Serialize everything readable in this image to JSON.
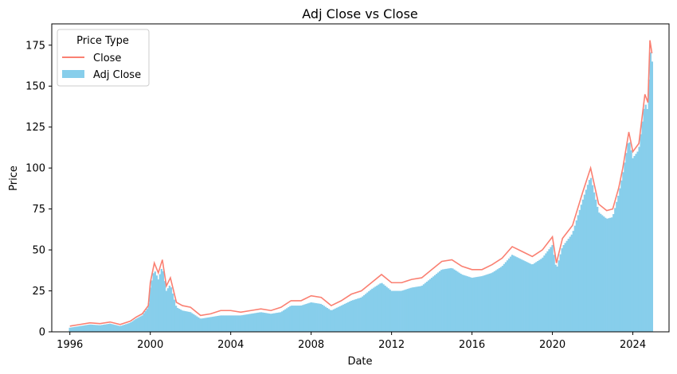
{
  "chart_data": {
    "type": "bar",
    "title": "Adj Close vs Close",
    "xlabel": "Date",
    "ylabel": "Price",
    "xlim": [
      1995.1,
      2025.8
    ],
    "ylim": [
      0,
      188
    ],
    "x_ticks": [
      1996,
      2000,
      2004,
      2008,
      2012,
      2016,
      2020,
      2024
    ],
    "y_ticks": [
      0,
      25,
      50,
      75,
      100,
      125,
      150,
      175
    ],
    "legend": {
      "title": "Price Type",
      "placement": "top-left",
      "entries": [
        {
          "label": "Close",
          "kind": "line",
          "color": "#fa8072"
        },
        {
          "label": "Adj Close",
          "kind": "bar",
          "color": "#87ceeb"
        }
      ]
    },
    "series": [
      {
        "name": "Close",
        "kind": "line",
        "color": "#fa8072",
        "x": [
          1996.0,
          1996.5,
          1997.0,
          1997.5,
          1998.0,
          1998.5,
          1999.0,
          1999.3,
          1999.6,
          1999.9,
          2000.0,
          2000.2,
          2000.4,
          2000.6,
          2000.8,
          2001.0,
          2001.3,
          2001.6,
          2002.0,
          2002.5,
          2003.0,
          2003.5,
          2004.0,
          2004.5,
          2005.0,
          2005.5,
          2006.0,
          2006.5,
          2007.0,
          2007.5,
          2008.0,
          2008.5,
          2009.0,
          2009.5,
          2010.0,
          2010.5,
          2011.0,
          2011.5,
          2012.0,
          2012.5,
          2013.0,
          2013.5,
          2014.0,
          2014.5,
          2015.0,
          2015.5,
          2016.0,
          2016.5,
          2017.0,
          2017.5,
          2018.0,
          2018.5,
          2019.0,
          2019.5,
          2020.0,
          2020.2,
          2020.5,
          2021.0,
          2021.5,
          2021.9,
          2022.3,
          2022.7,
          2023.0,
          2023.3,
          2023.5,
          2023.8,
          2024.0,
          2024.3,
          2024.6,
          2024.75,
          2024.85,
          2024.95
        ],
        "y": [
          3.5,
          4.5,
          5.5,
          5,
          6,
          4.5,
          6.5,
          9,
          11,
          16,
          30,
          42,
          36,
          44,
          28,
          33,
          18,
          16,
          15,
          10,
          11,
          13,
          13,
          12,
          13,
          14,
          13,
          15,
          19,
          19,
          22,
          21,
          16,
          19,
          23,
          25,
          30,
          35,
          30,
          30,
          32,
          33,
          38,
          43,
          44,
          40,
          38,
          38,
          41,
          45,
          52,
          49,
          46,
          50,
          58,
          42,
          57,
          65,
          85,
          100,
          78,
          74,
          75,
          88,
          100,
          122,
          110,
          115,
          145,
          140,
          178,
          170
        ]
      },
      {
        "name": "Adj Close",
        "kind": "bar",
        "color": "#87ceeb",
        "x": [
          1996.0,
          1996.5,
          1997.0,
          1997.5,
          1998.0,
          1998.5,
          1999.0,
          1999.3,
          1999.6,
          1999.9,
          2000.0,
          2000.2,
          2000.4,
          2000.6,
          2000.8,
          2001.0,
          2001.3,
          2001.6,
          2002.0,
          2002.5,
          2003.0,
          2003.5,
          2004.0,
          2004.5,
          2005.0,
          2005.5,
          2006.0,
          2006.5,
          2007.0,
          2007.5,
          2008.0,
          2008.5,
          2009.0,
          2009.5,
          2010.0,
          2010.5,
          2011.0,
          2011.5,
          2012.0,
          2012.5,
          2013.0,
          2013.5,
          2014.0,
          2014.5,
          2015.0,
          2015.5,
          2016.0,
          2016.5,
          2017.0,
          2017.5,
          2018.0,
          2018.5,
          2019.0,
          2019.5,
          2020.0,
          2020.2,
          2020.5,
          2021.0,
          2021.5,
          2021.9,
          2022.3,
          2022.7,
          2023.0,
          2023.3,
          2023.5,
          2023.8,
          2024.0,
          2024.3,
          2024.6,
          2024.75,
          2024.85,
          2024.95
        ],
        "y": [
          2.5,
          3.5,
          4.5,
          4,
          5,
          3.5,
          5.5,
          8,
          10,
          15,
          27,
          38,
          32,
          40,
          25,
          29,
          15,
          13,
          12,
          8,
          9,
          10,
          10,
          10,
          11,
          12,
          11,
          12,
          16,
          16,
          18,
          17,
          13,
          16,
          19,
          21,
          26,
          30,
          25,
          25,
          27,
          28,
          33,
          38,
          39,
          35,
          33,
          34,
          36,
          40,
          47,
          44,
          41,
          45,
          53,
          38,
          52,
          60,
          80,
          95,
          73,
          69,
          70,
          84,
          96,
          118,
          106,
          111,
          140,
          135,
          173,
          165
        ]
      }
    ]
  }
}
